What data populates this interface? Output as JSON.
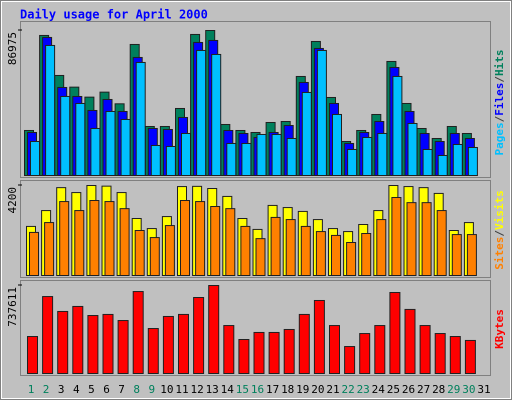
{
  "chart_data": {
    "type": "bar",
    "title": "Daily usage for April 2000",
    "categories": [
      "1",
      "2",
      "3",
      "4",
      "5",
      "6",
      "7",
      "8",
      "9",
      "10",
      "11",
      "12",
      "13",
      "14",
      "15",
      "16",
      "17",
      "18",
      "19",
      "20",
      "21",
      "22",
      "23",
      "24",
      "25",
      "26",
      "27",
      "28",
      "29",
      "30",
      "31"
    ],
    "weekend": [
      0,
      1,
      7,
      8,
      14,
      15,
      21,
      22,
      28,
      29
    ],
    "weekend_color": "#00805c",
    "legend_separator": "/",
    "panels": [
      {
        "ylim": [
          0,
          86975
        ],
        "yticks": [
          86975
        ],
        "series": [
          {
            "name": "Hits",
            "color": "#00805c",
            "values": [
              27000,
              84000,
              60000,
              53000,
              47000,
              50000,
              43000,
              78600,
              29400,
              29400,
              40200,
              84600,
              86975,
              30600,
              27000,
              25800,
              31800,
              32400,
              59400,
              80400,
              46800,
              20400,
              27000,
              36600,
              68400,
              43200,
              28200,
              22200,
              29400,
              25200,
              0
            ]
          },
          {
            "name": "Files",
            "color": "#0000ff",
            "values": [
              25800,
              82800,
              52800,
              47400,
              39000,
              45600,
              38400,
              70800,
              28200,
              27600,
              34800,
              79800,
              81000,
              27000,
              25200,
              22800,
              25800,
              30000,
              55800,
              76200,
              43200,
              19200,
              25800,
              32400,
              64800,
              38400,
              25200,
              20400,
              25200,
              22200,
              0
            ]
          },
          {
            "name": "Pages",
            "color": "#00c0ff",
            "values": [
              20400,
              78000,
              47400,
              43200,
              28200,
              38400,
              33600,
              67800,
              18000,
              17400,
              25200,
              75000,
              72600,
              19200,
              19200,
              24600,
              24600,
              22200,
              49800,
              75000,
              36600,
              15600,
              22800,
              25200,
              59400,
              31200,
              15600,
              12000,
              18600,
              16800,
              0
            ]
          }
        ]
      },
      {
        "ylim": [
          0,
          4200
        ],
        "yticks": [
          4200
        ],
        "series": [
          {
            "name": "Visits",
            "color": "#ffff00",
            "values": [
              2290,
              3030,
              4100,
              3870,
              4200,
              4170,
              3870,
              2660,
              2190,
              2750,
              4150,
              4160,
              4060,
              3690,
              2660,
              2150,
              3270,
              3170,
              2990,
              2610,
              2190,
              2050,
              2380,
              3030,
              4200,
              4150,
              4100,
              3830,
              2100,
              2470,
              0
            ]
          },
          {
            "name": "Sites",
            "color": "#ff8000",
            "values": [
              2010,
              2470,
              3450,
              3030,
              3500,
              3450,
              3120,
              2100,
              1770,
              2330,
              3500,
              3450,
              3220,
              3120,
              2290,
              1720,
              2710,
              2610,
              2290,
              2050,
              1870,
              1540,
              1960,
              2610,
              3640,
              3400,
              3400,
              3030,
              1910,
              1910,
              0
            ]
          }
        ]
      },
      {
        "ylim": [
          0,
          737611
        ],
        "yticks": [
          737611
        ],
        "series": [
          {
            "name": "KBytes",
            "color": "#ff0000",
            "values": [
              310000,
              645000,
              520000,
              562000,
              486000,
              495000,
              444000,
              687000,
              377000,
              478000,
              495000,
              637000,
              737611,
              402000,
              285000,
              344000,
              344000,
              369000,
              495000,
              612000,
              402000,
              226000,
              335000,
              402000,
              679000,
              537000,
              402000,
              335000,
              310000,
              277000,
              0
            ]
          }
        ]
      }
    ]
  }
}
